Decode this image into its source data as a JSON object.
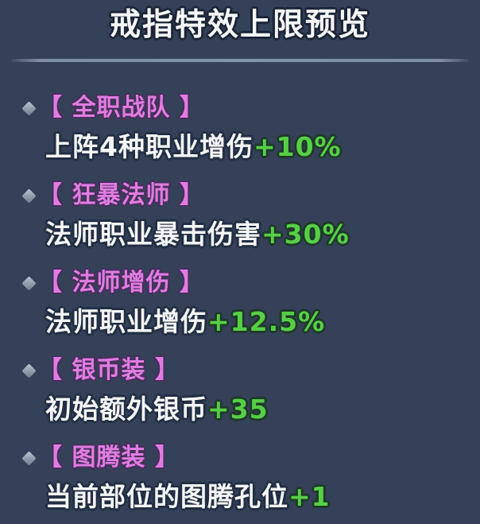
{
  "panel": {
    "title": "戒指特效上限预览",
    "bullet_icon": "diamond",
    "colors": {
      "background": "#344159",
      "title_text": "#f5f7fa",
      "divider": "#7e8da1",
      "effect_name_pink": "#e07ce0",
      "description_white": "#f4f6f9",
      "value_green": "#57cf47",
      "bullet_gray_blue": "#95a2b2"
    },
    "effects": [
      {
        "name": "【 全职战队 】",
        "desc": "上阵4种职业增伤",
        "value": "+10%"
      },
      {
        "name": "【 狂暴法师 】",
        "desc": "法师职业暴击伤害",
        "value": "+30%"
      },
      {
        "name": "【 法师增伤 】",
        "desc": "法师职业增伤",
        "value": "+12.5%"
      },
      {
        "name": "【 银币装 】",
        "desc": "初始额外银币",
        "value": "+35"
      },
      {
        "name": "【 图腾装 】",
        "desc": "当前部位的图腾孔位",
        "value": "+1"
      }
    ]
  }
}
